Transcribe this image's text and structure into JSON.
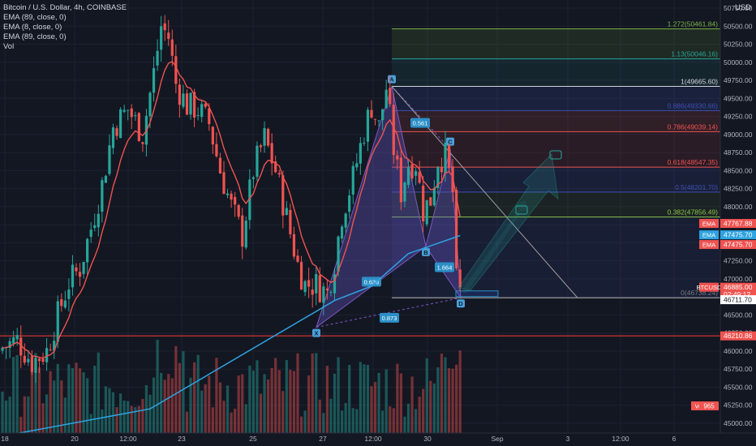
{
  "legend": {
    "symbol": "Bitcoin / U.S. Dollar, 4h, COINBASE",
    "ema1": "EMA (89, close, 0)",
    "ema2": "EMA (8, close, 0)",
    "ema3": "EMA (89, close, 0)",
    "vol": "Vol"
  },
  "currency": "USD",
  "colors": {
    "background": "#131722",
    "up": "#26a69a",
    "down": "#ef5350",
    "ema_fast": "#ef5350",
    "ema_slow": "#2ea3e0",
    "pattern_fill": "#6a5acd",
    "grid": "#1e2230",
    "axis_text": "#b2b5be"
  },
  "price_axis": {
    "ticks": [
      "50750.00",
      "50500.00",
      "50250.00",
      "50000.00",
      "49750.00",
      "49500.00",
      "49250.00",
      "49000.00",
      "48750.00",
      "48500.00",
      "48250.00",
      "48000.00",
      "47750.00",
      "47500.00",
      "47250.00",
      "47000.00",
      "46750.00",
      "46500.00",
      "46250.00",
      "46000.00",
      "45750.00",
      "45500.00",
      "45250.00",
      "45000.00"
    ],
    "tick_values": [
      50750,
      50500,
      50250,
      50000,
      49750,
      49500,
      49250,
      49000,
      48750,
      48500,
      48250,
      48000,
      47750,
      47500,
      47250,
      47000,
      46750,
      46500,
      46250,
      46000,
      45750,
      45500,
      45250,
      45000
    ],
    "tags": [
      {
        "label": "EMA",
        "value": "47767.88",
        "price": 47767.88,
        "color": "#ef5350"
      },
      {
        "label": "EMA",
        "value": "47475.70",
        "price": 47475.7,
        "color": "#2ea3e0"
      },
      {
        "label": "EMA",
        "value": "47475.70",
        "price": 47475.7,
        "color": "#ef5350"
      },
      {
        "label": "BTCUSD",
        "value": "46885.00",
        "sub": "02:49:12",
        "price": 46885,
        "color": "#ef5350"
      },
      {
        "label": "",
        "value": "46711.70",
        "price": 46711.7,
        "color": "#ffffff"
      },
      {
        "label": "",
        "value": "46210.86",
        "price": 46210.86,
        "color": "#ef5350"
      },
      {
        "label": "Volume",
        "value": "965",
        "price": 45070,
        "color": "#ef5350"
      }
    ]
  },
  "time_axis": {
    "labels": [
      "18",
      "20",
      "12:00",
      "23",
      "25",
      "27",
      "12:00",
      "30",
      "Sep",
      "3",
      "12:00",
      "6"
    ]
  },
  "fib_levels": [
    {
      "label": "1.272(50461.84)",
      "price": 50461.84,
      "color": "#7cb342"
    },
    {
      "label": "1.13(50046.16)",
      "price": 50046.16,
      "color": "#26a69a"
    },
    {
      "label": "1(49665.60)",
      "price": 49665.6,
      "color": "#d1d4dc"
    },
    {
      "label": "0.886(49330.66)",
      "price": 49330.66,
      "color": "#3f51b5"
    },
    {
      "label": "0.786(49039.14)",
      "price": 49039.14,
      "color": "#ef5350"
    },
    {
      "label": "0.618(48547.35)",
      "price": 48547.35,
      "color": "#ef5350"
    },
    {
      "label": "0.5(48201.70)",
      "price": 48201.7,
      "color": "#3f51b5"
    },
    {
      "label": "0.382(47856.49)",
      "price": 47856.49,
      "color": "#8bc34a"
    },
    {
      "label": "0(46738.24)",
      "price": 46738.24,
      "color": "#787b86"
    }
  ],
  "support_line": {
    "price": 46210.86
  },
  "harmonic": {
    "points": {
      "X": "X",
      "A": "A",
      "B": "B",
      "C": "C",
      "D": "D"
    },
    "ratios": {
      "xab": "0.561",
      "xad_b": "0.636",
      "bcd": "1.664",
      "xd": "0.873"
    }
  },
  "ema_tags": [
    {
      "label": "EMA",
      "value": "47767.88"
    },
    {
      "label": "EMA",
      "value": "47475.70"
    },
    {
      "label": "EMA",
      "value": "47475.70"
    }
  ],
  "btc_tag": {
    "label": "BTCUSD",
    "price": "46885.00",
    "countdown": "02:49:12"
  },
  "last_level": "46711.70",
  "support_value": "46210.86",
  "volume_tag": {
    "label": "Volume",
    "value": "965"
  }
}
